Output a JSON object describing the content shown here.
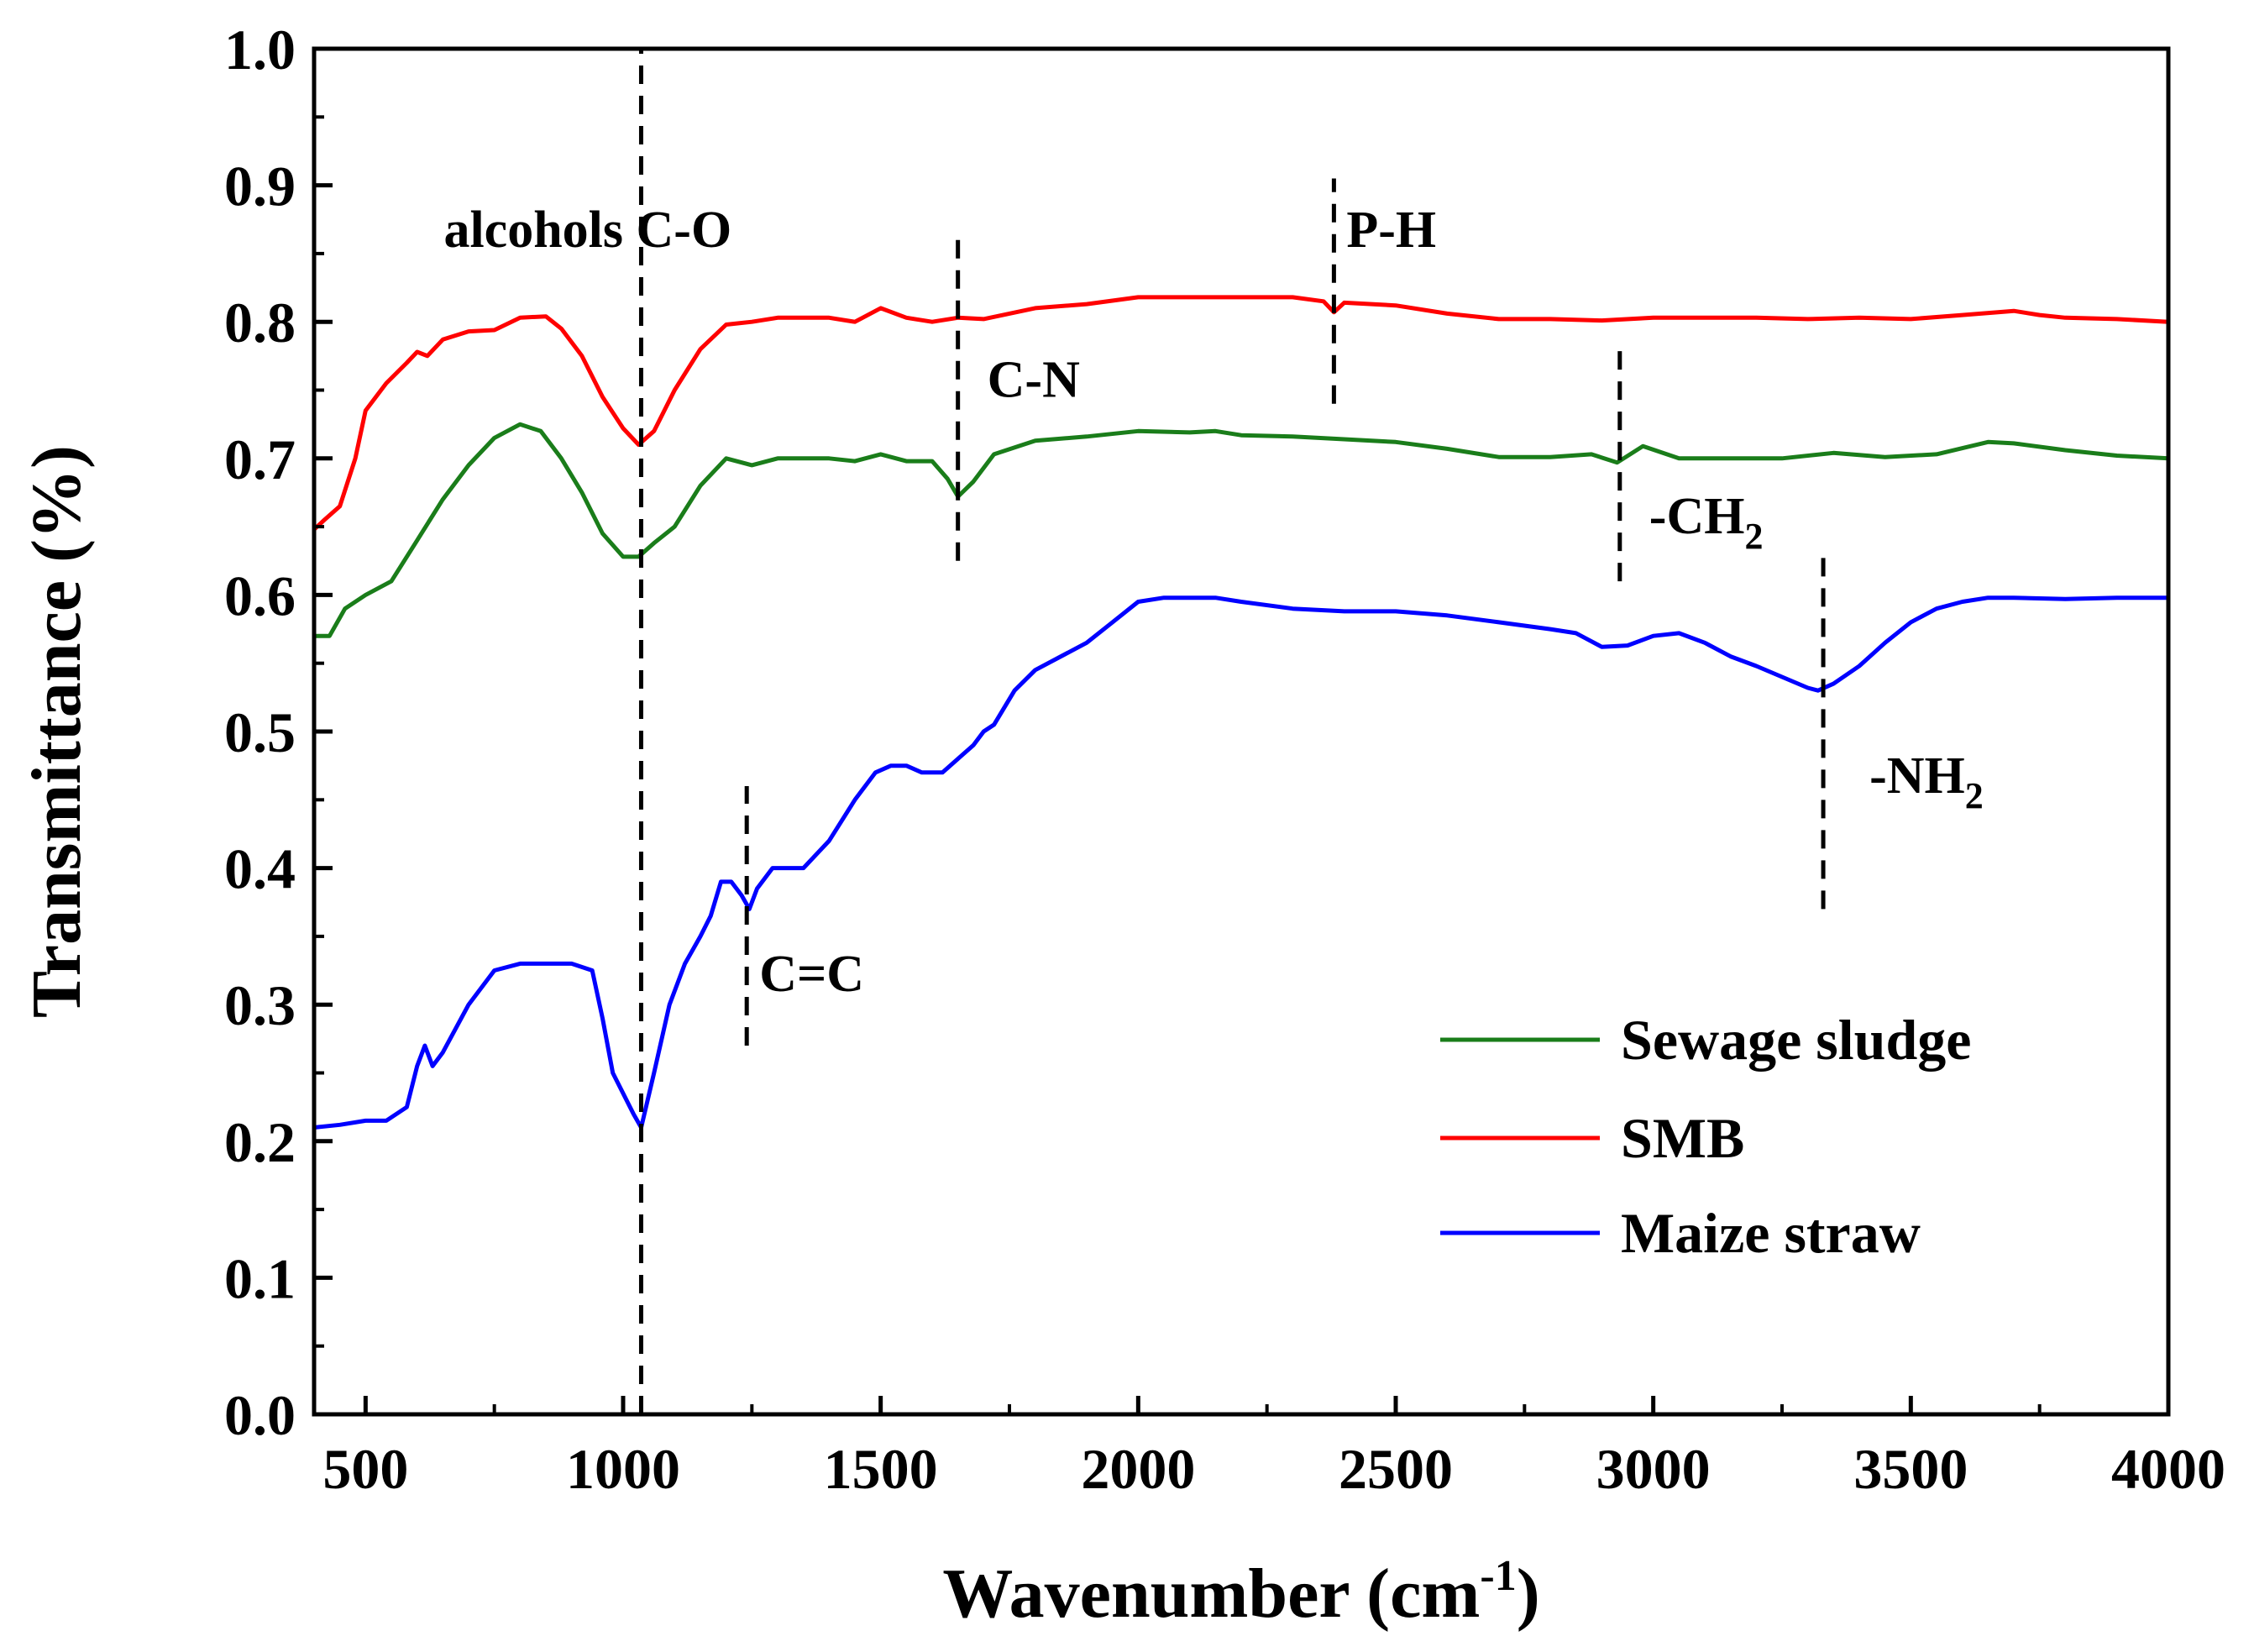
{
  "chart_data": {
    "type": "line",
    "title": "",
    "xlabel": "Wavenumber (cm",
    "xlabel_sup": "-1",
    "xlabel_close": ")",
    "ylabel": "Transmittance (%)",
    "xlim": [
      400,
      4000
    ],
    "ylim": [
      0.0,
      1.0
    ],
    "x_ticks": [
      500,
      1000,
      1500,
      2000,
      2500,
      3000,
      3500,
      4000
    ],
    "x_tick_labels": [
      "500",
      "1000",
      "1500",
      "2000",
      "2500",
      "3000",
      "3500",
      "4000"
    ],
    "y_ticks": [
      0.0,
      0.1,
      0.2,
      0.3,
      0.4,
      0.5,
      0.6,
      0.7,
      0.8,
      0.9,
      1.0
    ],
    "y_tick_labels": [
      "0.0",
      "0.1",
      "0.2",
      "0.3",
      "0.4",
      "0.5",
      "0.6",
      "0.7",
      "0.8",
      "0.9",
      "1.0"
    ],
    "grid": false,
    "legend_position": "bottom-right",
    "series": [
      {
        "name": "Sewage sludge",
        "color": "#1a7d1a",
        "x": [
          400,
          430,
          460,
          500,
          550,
          600,
          650,
          700,
          750,
          800,
          840,
          880,
          920,
          960,
          1000,
          1030,
          1060,
          1100,
          1150,
          1200,
          1250,
          1300,
          1350,
          1400,
          1450,
          1500,
          1550,
          1600,
          1630,
          1650,
          1680,
          1720,
          1800,
          1900,
          2000,
          2100,
          2150,
          2200,
          2300,
          2400,
          2500,
          2600,
          2700,
          2800,
          2880,
          2930,
          2980,
          3050,
          3150,
          3250,
          3350,
          3450,
          3550,
          3650,
          3700,
          3800,
          3900,
          4000
        ],
        "y": [
          0.57,
          0.57,
          0.59,
          0.6,
          0.61,
          0.64,
          0.67,
          0.695,
          0.715,
          0.725,
          0.72,
          0.7,
          0.675,
          0.645,
          0.628,
          0.628,
          0.638,
          0.65,
          0.68,
          0.7,
          0.695,
          0.7,
          0.7,
          0.7,
          0.698,
          0.703,
          0.698,
          0.698,
          0.685,
          0.672,
          0.683,
          0.703,
          0.713,
          0.716,
          0.72,
          0.719,
          0.72,
          0.717,
          0.716,
          0.714,
          0.712,
          0.707,
          0.701,
          0.701,
          0.703,
          0.697,
          0.709,
          0.7,
          0.7,
          0.7,
          0.704,
          0.701,
          0.703,
          0.712,
          0.711,
          0.706,
          0.702,
          0.7
        ]
      },
      {
        "name": "SMB",
        "color": "#ff0000",
        "x": [
          400,
          420,
          450,
          480,
          500,
          540,
          580,
          600,
          620,
          650,
          700,
          750,
          800,
          850,
          880,
          920,
          960,
          1000,
          1030,
          1060,
          1100,
          1150,
          1200,
          1250,
          1300,
          1400,
          1450,
          1500,
          1550,
          1600,
          1650,
          1700,
          1800,
          1900,
          2000,
          2100,
          2200,
          2300,
          2360,
          2380,
          2400,
          2500,
          2600,
          2700,
          2800,
          2900,
          3000,
          3100,
          3200,
          3300,
          3400,
          3500,
          3600,
          3700,
          3750,
          3800,
          3900,
          4000
        ],
        "y": [
          0.648,
          0.655,
          0.665,
          0.7,
          0.735,
          0.755,
          0.77,
          0.778,
          0.775,
          0.787,
          0.793,
          0.794,
          0.803,
          0.804,
          0.795,
          0.775,
          0.745,
          0.722,
          0.71,
          0.72,
          0.75,
          0.78,
          0.798,
          0.8,
          0.803,
          0.803,
          0.8,
          0.81,
          0.803,
          0.8,
          0.803,
          0.802,
          0.81,
          0.813,
          0.818,
          0.818,
          0.818,
          0.818,
          0.815,
          0.807,
          0.814,
          0.812,
          0.806,
          0.802,
          0.802,
          0.801,
          0.803,
          0.803,
          0.803,
          0.802,
          0.803,
          0.802,
          0.805,
          0.808,
          0.805,
          0.803,
          0.802,
          0.8
        ]
      },
      {
        "name": "Maize straw",
        "color": "#0000ff",
        "x": [
          400,
          450,
          500,
          540,
          580,
          600,
          615,
          630,
          650,
          700,
          750,
          800,
          850,
          900,
          940,
          960,
          980,
          1000,
          1020,
          1035,
          1060,
          1090,
          1120,
          1150,
          1170,
          1190,
          1210,
          1230,
          1245,
          1260,
          1290,
          1320,
          1350,
          1400,
          1450,
          1490,
          1520,
          1550,
          1580,
          1600,
          1620,
          1650,
          1680,
          1700,
          1720,
          1760,
          1800,
          1900,
          1950,
          2000,
          2050,
          2100,
          2150,
          2200,
          2300,
          2400,
          2500,
          2600,
          2700,
          2800,
          2850,
          2900,
          2950,
          3000,
          3050,
          3100,
          3150,
          3200,
          3250,
          3300,
          3320,
          3350,
          3400,
          3450,
          3500,
          3550,
          3600,
          3650,
          3700,
          3800,
          3900,
          4000
        ],
        "y": [
          0.21,
          0.212,
          0.215,
          0.215,
          0.225,
          0.255,
          0.27,
          0.255,
          0.265,
          0.3,
          0.325,
          0.33,
          0.33,
          0.33,
          0.325,
          0.29,
          0.25,
          0.235,
          0.22,
          0.21,
          0.25,
          0.3,
          0.33,
          0.35,
          0.365,
          0.39,
          0.39,
          0.38,
          0.37,
          0.385,
          0.4,
          0.4,
          0.4,
          0.42,
          0.45,
          0.47,
          0.475,
          0.475,
          0.47,
          0.47,
          0.47,
          0.48,
          0.49,
          0.5,
          0.505,
          0.53,
          0.545,
          0.565,
          0.58,
          0.595,
          0.598,
          0.598,
          0.598,
          0.595,
          0.59,
          0.588,
          0.588,
          0.585,
          0.58,
          0.575,
          0.572,
          0.562,
          0.563,
          0.57,
          0.572,
          0.565,
          0.555,
          0.548,
          0.54,
          0.532,
          0.53,
          0.535,
          0.548,
          0.565,
          0.58,
          0.59,
          0.595,
          0.598,
          0.598,
          0.597,
          0.598,
          0.598
        ]
      }
    ],
    "annotations": [
      {
        "text": "alcohols C-O",
        "x": 1035,
        "y_from": 0.0,
        "y_to": 1.0
      },
      {
        "text": "C-N",
        "x": 1650,
        "y_from": 0.625,
        "y_to": 0.86
      },
      {
        "text": "P-H",
        "x": 2380,
        "y_from": 0.74,
        "y_to": 0.905
      },
      {
        "text": "-CH",
        "sub": "2",
        "x": 2935,
        "y_from": 0.61,
        "y_to": 0.78
      },
      {
        "text": "-NH",
        "sub": "2",
        "x": 3330,
        "y_from": 0.37,
        "y_to": 0.63
      },
      {
        "text": "C=C",
        "x": 1240,
        "y_from": 0.27,
        "y_to": 0.46
      }
    ]
  }
}
